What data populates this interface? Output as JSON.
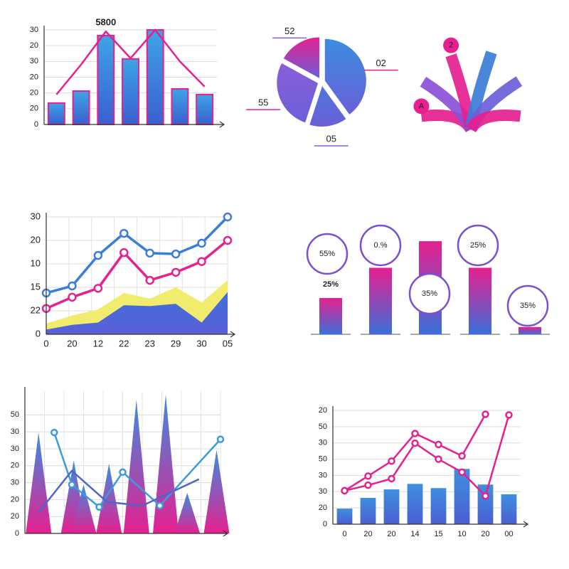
{
  "chart_data": [
    {
      "type": "bar",
      "annotation": "5800",
      "categories": [
        null,
        null,
        null,
        null,
        null,
        null,
        null
      ],
      "ylim": [
        0,
        30
      ],
      "yticks": [
        0,
        {
          "value": 5,
          "label": "20"
        },
        {
          "value": 10,
          "label": "20"
        },
        {
          "value": 15,
          "label": "20"
        },
        {
          "value": 20,
          "label": "30"
        },
        {
          "value": 25,
          "label": "20"
        },
        {
          "value": 30,
          "label": "30"
        }
      ],
      "grid": true,
      "series": [
        {
          "type": "bar",
          "color": "#e6208f",
          "gradient": [
            "#3fa3e6",
            "#3b5fd0"
          ],
          "values": [
            6.8,
            10.6,
            28.2,
            20.8,
            30,
            11.3,
            9.5
          ]
        },
        {
          "type": "line",
          "color": "#e6208f",
          "values": [
            9.5,
            19,
            29.5,
            21,
            30,
            20,
            12
          ]
        }
      ]
    },
    {
      "type": "pie",
      "categories": [
        "02",
        "05",
        "55",
        "52"
      ],
      "values": [
        40,
        15,
        28,
        17
      ],
      "colors": [
        "#3b8de0",
        "#4f78d8",
        "#8a5fd8",
        "#e6208f"
      ]
    },
    {
      "type": "fan",
      "categories": [
        "A",
        null,
        "2",
        null,
        null,
        null
      ],
      "values": [
        72,
        95,
        108,
        112,
        96,
        72
      ],
      "colors": [
        "#e6208f",
        "#8a4fd8",
        "#e6208f",
        "#3b7dd8",
        "#6a5fd8",
        "#e6208f"
      ]
    },
    {
      "type": "line",
      "categories": [
        "0",
        "20",
        "12",
        "22",
        "23",
        "29",
        "30",
        "05"
      ],
      "ylim": [
        0,
        25
      ],
      "yticks": [
        0,
        {
          "value": 5,
          "label": "22"
        },
        {
          "value": 10,
          "label": "15"
        },
        {
          "value": 15,
          "label": "10"
        },
        {
          "value": 20,
          "label": "20"
        },
        {
          "value": 25,
          "label": "30"
        }
      ],
      "grid": true,
      "series": [
        {
          "type": "area",
          "color": "#f2ec6e",
          "values": [
            2.3,
            4,
            5.3,
            8.8,
            7.6,
            10,
            6.8,
            11.5
          ]
        },
        {
          "type": "area",
          "color": "#3b7dd8",
          "gradient": [
            "#3f6fd8",
            "#5a5fd8"
          ],
          "values": [
            1,
            2,
            2.5,
            6.2,
            6,
            6.5,
            2.5,
            9
          ]
        },
        {
          "type": "line",
          "color": "#e6208f",
          "markers": true,
          "values": [
            5.5,
            7.9,
            9.8,
            17.4,
            11.5,
            13.2,
            15.5,
            20
          ]
        },
        {
          "type": "line",
          "color": "#3b7dd8",
          "markers": true,
          "values": [
            8.8,
            10.3,
            16.8,
            21.5,
            17.3,
            17.1,
            19.4,
            25
          ]
        }
      ]
    },
    {
      "type": "bubble-bar",
      "values": [
        30,
        55,
        77,
        55,
        6
      ],
      "gradient": [
        "#e6208f",
        "#3b6fd8"
      ],
      "color": "#7a4fd0",
      "bubbles": [
        "55%",
        "0.%",
        "35%",
        "25%",
        "35%"
      ],
      "note": "25%"
    },
    {
      "type": "spike",
      "xlim": [
        0,
        10
      ],
      "ylim": [
        0,
        42
      ],
      "yticks": [
        0,
        {
          "value": 5,
          "label": "20"
        },
        {
          "value": 10,
          "label": "20"
        },
        {
          "value": 15,
          "label": "30"
        },
        {
          "value": 20,
          "label": "20"
        },
        {
          "value": 25,
          "label": "30"
        },
        {
          "value": 30,
          "label": "30"
        },
        {
          "value": 35,
          "label": "50"
        }
      ],
      "grid": true,
      "series": [
        {
          "type": "spike",
          "color": "#3b7dd8",
          "gradient": [
            "#3b8de0",
            "#e6208f"
          ],
          "x": [
            0.7,
            2.5,
            3,
            4.3,
            5.7,
            7.2,
            8.3,
            9.8
          ],
          "values": [
            29.8,
            21.6,
            14.4,
            20.6,
            39.5,
            41,
            12,
            24.7
          ]
        },
        {
          "type": "line",
          "color": "#3b9be0",
          "x": [
            1.5,
            2.4,
            3.8,
            5,
            6.9,
            10
          ],
          "values": [
            29.8,
            14.4,
            7.8,
            18.1,
            8.2,
            27.8
          ],
          "markers": true
        },
        {
          "type": "line",
          "color": "#4a68c8",
          "x": [
            0.7,
            2.4,
            4.2,
            6,
            8.9
          ],
          "values": [
            6.2,
            18.5,
            9.3,
            8.2,
            16
          ]
        }
      ]
    },
    {
      "type": "bar",
      "categories": [
        "0",
        "20",
        "20",
        "14",
        "15",
        "10",
        "20",
        "00"
      ],
      "ylim": [
        0,
        35
      ],
      "yticks": [
        0,
        {
          "value": 5,
          "label": "20"
        },
        {
          "value": 10,
          "label": "30"
        },
        {
          "value": 15,
          "label": "30"
        },
        {
          "value": 20,
          "label": "50"
        },
        {
          "value": 25,
          "label": "30"
        },
        {
          "value": 30,
          "label": "50"
        },
        {
          "value": 35,
          "label": "20"
        }
      ],
      "grid": true,
      "series": [
        {
          "type": "bar",
          "color": "#3b7dd8",
          "gradient": [
            "#3f8fe0",
            "#4a5fd0"
          ],
          "values": [
            4.8,
            8.1,
            10.7,
            12.4,
            11.1,
            17,
            12.2,
            9.2
          ]
        },
        {
          "type": "line",
          "color": "#e6208f",
          "markers": true,
          "values": [
            10.3,
            14.8,
            19.4,
            27.9,
            24.5,
            21,
            33.8,
            null
          ]
        },
        {
          "type": "line",
          "color": "#e6208f",
          "markers": true,
          "values": [
            10.3,
            12,
            14,
            24.9,
            20,
            16,
            8.7,
            33.6
          ]
        }
      ]
    }
  ]
}
